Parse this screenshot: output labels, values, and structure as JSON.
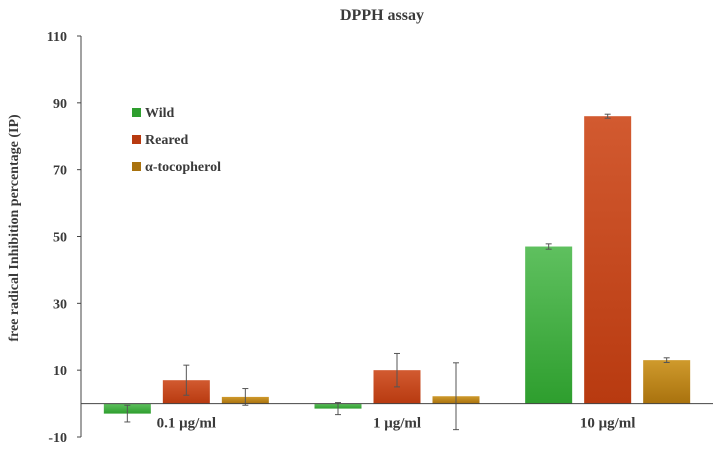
{
  "chart_data": {
    "type": "bar",
    "title": "DPPH assay",
    "xlabel": "",
    "ylabel": "free radical Inhibition percentage (IP)",
    "categories": [
      "0.1 μg/ml",
      "1 μg/ml",
      "10 μg/ml"
    ],
    "ylim": [
      -10,
      110
    ],
    "yticks": [
      -10,
      10,
      30,
      50,
      70,
      90,
      110
    ],
    "legend_position": "upper-left",
    "grid": false,
    "series": [
      {
        "name": "Wild",
        "values": [
          -3.0,
          -1.5,
          47.0
        ],
        "errors": [
          2.5,
          1.8,
          0.8
        ],
        "color_top": "#5fc05f",
        "color_bottom": "#2e9e2e"
      },
      {
        "name": "Reared",
        "values": [
          7.0,
          10.0,
          86.0
        ],
        "errors": [
          4.5,
          5.0,
          0.6
        ],
        "color_top": "#d25a30",
        "color_bottom": "#b83a10"
      },
      {
        "name": "α-tocopherol",
        "values": [
          2.0,
          2.2,
          13.0
        ],
        "errors": [
          2.5,
          10.0,
          0.7
        ],
        "color_top": "#cf9a2c",
        "color_bottom": "#a9720e"
      }
    ]
  }
}
